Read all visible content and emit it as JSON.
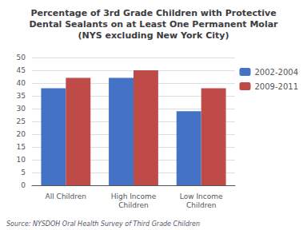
{
  "chart_data": {
    "type": "bar",
    "title": "Percentage of 3rd Grade Children with Protective\nDental Sealants on at Least One Permanent Molar\n(NYS excluding New York City)",
    "annotations": [
      "Source: NYSDOH Oral Health Survey of Third Grade Children"
    ],
    "categories": [
      "All Children",
      "High Income\nChildren",
      "Low Income\nChildren"
    ],
    "series": [
      {
        "name": "2002-2004",
        "color": "#4472C4",
        "values": [
          38,
          42,
          29
        ]
      },
      {
        "name": "2009-2011",
        "color": "#BE4B48",
        "values": [
          42,
          45,
          38
        ]
      }
    ],
    "ylim": [
      0,
      50
    ],
    "yticks": [
      0,
      5,
      10,
      15,
      20,
      25,
      30,
      35,
      40,
      45,
      50
    ],
    "grid": true,
    "legend": "right"
  }
}
